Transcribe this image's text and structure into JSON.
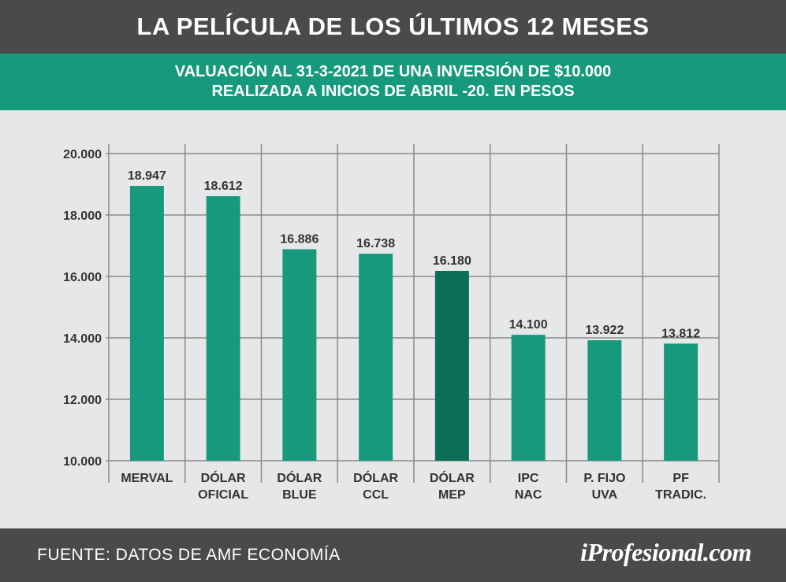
{
  "header": {
    "title": "LA PELÍCULA DE LOS ÚLTIMOS 12 MESES",
    "subtitle_line1": "VALUACIÓN AL 31-3-2021 DE UNA INVERSIÓN DE $10.000",
    "subtitle_line2": "REALIZADA A INICIOS DE ABRIL -20. EN PESOS"
  },
  "footer": {
    "source": "FUENTE: DATOS DE AMF ECONOMÍA",
    "brand": "iProfesional.com"
  },
  "colors": {
    "bar": "#17997d",
    "bar_highlight": "#0d6e58",
    "header_bg": "#4a4a4a",
    "subheader_bg": "#17997d",
    "plot_bg": "#e6e7e8",
    "grid": "#8a8a8a"
  },
  "chart_data": {
    "type": "bar",
    "categories": [
      [
        "MERVAL"
      ],
      [
        "DÓLAR",
        "OFICIAL"
      ],
      [
        "DÓLAR",
        "BLUE"
      ],
      [
        "DÓLAR",
        "CCL"
      ],
      [
        "DÓLAR",
        "MEP"
      ],
      [
        "IPC",
        "NAC"
      ],
      [
        "P.  FIJO",
        "UVA"
      ],
      [
        "PF",
        "TRADIC."
      ]
    ],
    "values": [
      18947,
      18612,
      16886,
      16738,
      16180,
      14100,
      13922,
      13812
    ],
    "value_labels": [
      "18.947",
      "18.612",
      "16.886",
      "16.738",
      "16.180",
      "14.100",
      "13.922",
      "13.812"
    ],
    "highlight_index": 4,
    "ylim": [
      10000,
      20000
    ],
    "yticks": [
      10000,
      12000,
      14000,
      16000,
      18000,
      20000
    ],
    "ytick_labels": [
      "10.000",
      "12.000",
      "14.000",
      "16.000",
      "18.000",
      "20.000"
    ],
    "grid": true
  }
}
